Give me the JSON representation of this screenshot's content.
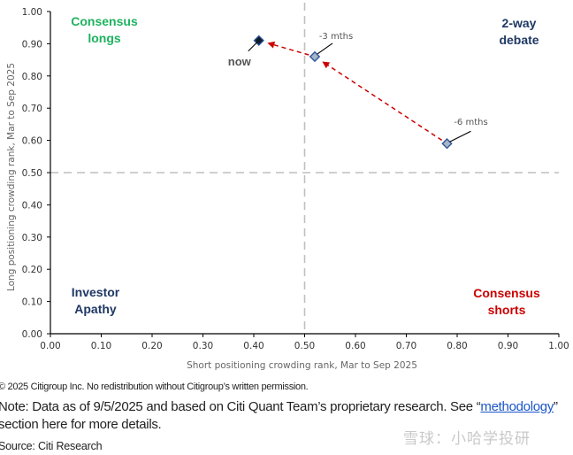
{
  "chart_data": {
    "type": "scatter",
    "title": "",
    "xlabel": "Short positioning crowding rank, Mar to Sep 2025",
    "ylabel": "Long positioning crowding rank, Mar to Sep 2025",
    "xlim": [
      0,
      1
    ],
    "ylim": [
      0,
      1
    ],
    "xticks": [
      "0.00",
      "0.10",
      "0.20",
      "0.30",
      "0.40",
      "0.50",
      "0.60",
      "0.70",
      "0.80",
      "0.90",
      "1.00"
    ],
    "yticks": [
      "0.00",
      "0.10",
      "0.20",
      "0.30",
      "0.40",
      "0.50",
      "0.60",
      "0.70",
      "0.80",
      "0.90",
      "1.00"
    ],
    "grid": false,
    "reference_lines": {
      "x": 0.5,
      "y": 0.5,
      "color": "#bfbfbf",
      "style": "dashed"
    },
    "points": [
      {
        "label": "-6 mths",
        "x": 0.78,
        "y": 0.59,
        "fill": "#a6b4c8",
        "stroke": "#2f5597"
      },
      {
        "label": "-3 mths",
        "x": 0.52,
        "y": 0.86,
        "fill": "#a6b4c8",
        "stroke": "#2f5597"
      },
      {
        "label": "now",
        "x": 0.41,
        "y": 0.91,
        "fill": "#0d1b2a",
        "stroke": "#2f5597"
      }
    ],
    "path": {
      "order": [
        "-6 mths",
        "-3 mths",
        "now"
      ],
      "color": "#cc0000",
      "style": "dashed-arrow"
    },
    "quadrant_labels": [
      {
        "id": "top-left",
        "lines": [
          "Consensus",
          "longs"
        ],
        "color": "#1eb25f"
      },
      {
        "id": "top-right",
        "lines": [
          "2-way",
          "debate"
        ],
        "color": "#1f3864"
      },
      {
        "id": "bottom-left",
        "lines": [
          "Investor",
          "Apathy"
        ],
        "color": "#1f3864"
      },
      {
        "id": "bottom-right",
        "lines": [
          "Consensus",
          "shorts"
        ],
        "color": "#cc0000"
      }
    ]
  },
  "footer": {
    "copyright": "© 2025 Citigroup Inc. No redistribution without Citigroup’s written permission.",
    "note_prefix": "Note: Data as of 9/5/2025 and based on Citi Quant Team’s proprietary research. See “",
    "note_link": "methodology",
    "note_suffix": "”",
    "note_line2": "section here for more details.",
    "source": "Source: Citi Research",
    "watermark": "雪球：小哈学投研"
  }
}
